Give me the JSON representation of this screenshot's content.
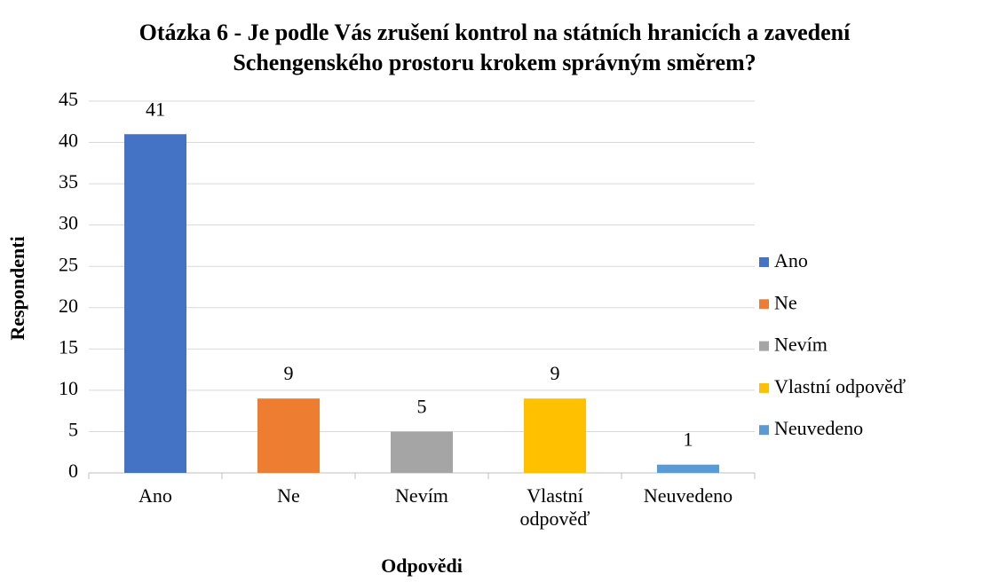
{
  "chart_data": {
    "type": "bar",
    "title": "Otázka 6 - Je podle Vás zrušení kontrol na státních hranicích a zavedení Schengenského prostoru krokem správným směrem?",
    "x_label": "Odpovědi",
    "y_label": "Respondenti",
    "categories": [
      "Ano",
      "Ne",
      "Nevím",
      "Vlastní odpověď",
      "Neuvedeno"
    ],
    "values": [
      41,
      9,
      5,
      9,
      1
    ],
    "colors": [
      "#4472c4",
      "#ed7d31",
      "#a5a5a5",
      "#ffc000",
      "#5b9bd5"
    ],
    "ylim": [
      0,
      45
    ],
    "yticks": [
      0,
      5,
      10,
      15,
      20,
      25,
      30,
      35,
      40,
      45
    ],
    "grid": true,
    "legend": "right"
  }
}
